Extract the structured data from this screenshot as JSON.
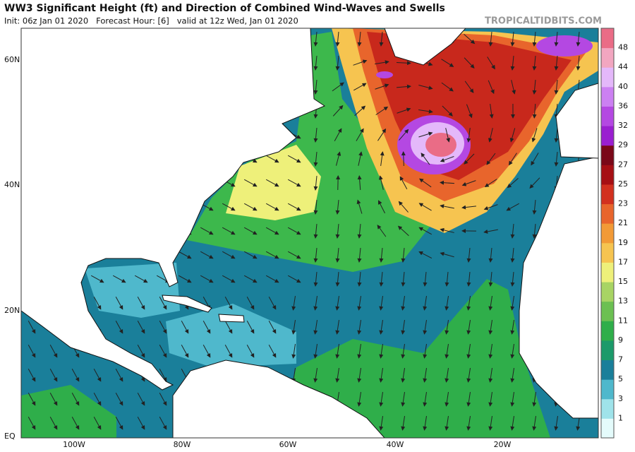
{
  "header": {
    "title": "WW3 Significant Height (ft) and Direction of Combined Wind-Waves and Swells",
    "subtitle": "Init: 06z Jan 01 2020   Forecast Hour: [6]   valid at 12z Wed, Jan 01 2020",
    "watermark": "TROPICALTIDBITS.COM"
  },
  "map": {
    "lat_labels": [
      "60N",
      "40N",
      "20N",
      "EQ"
    ],
    "lon_labels": [
      "100W",
      "80W",
      "60W",
      "40W",
      "20W"
    ]
  },
  "colorbar": {
    "ticks": [
      1,
      3,
      5,
      7,
      9,
      11,
      13,
      15,
      17,
      19,
      21,
      23,
      25,
      27,
      29,
      32,
      36,
      40,
      44,
      48
    ],
    "colors": [
      "#e4fbfb",
      "#9fe3ea",
      "#4fb8cc",
      "#1a7f9a",
      "#1c9a6a",
      "#2fae4a",
      "#6cc052",
      "#a8d464",
      "#eef07a",
      "#f6c450",
      "#f29a36",
      "#e8652c",
      "#d2301f",
      "#a60f14",
      "#7a0818",
      "#9a1fd0",
      "#b448e2",
      "#cc80f2",
      "#e4b8fa",
      "#f2a6c0",
      "#ea6c86"
    ]
  }
}
